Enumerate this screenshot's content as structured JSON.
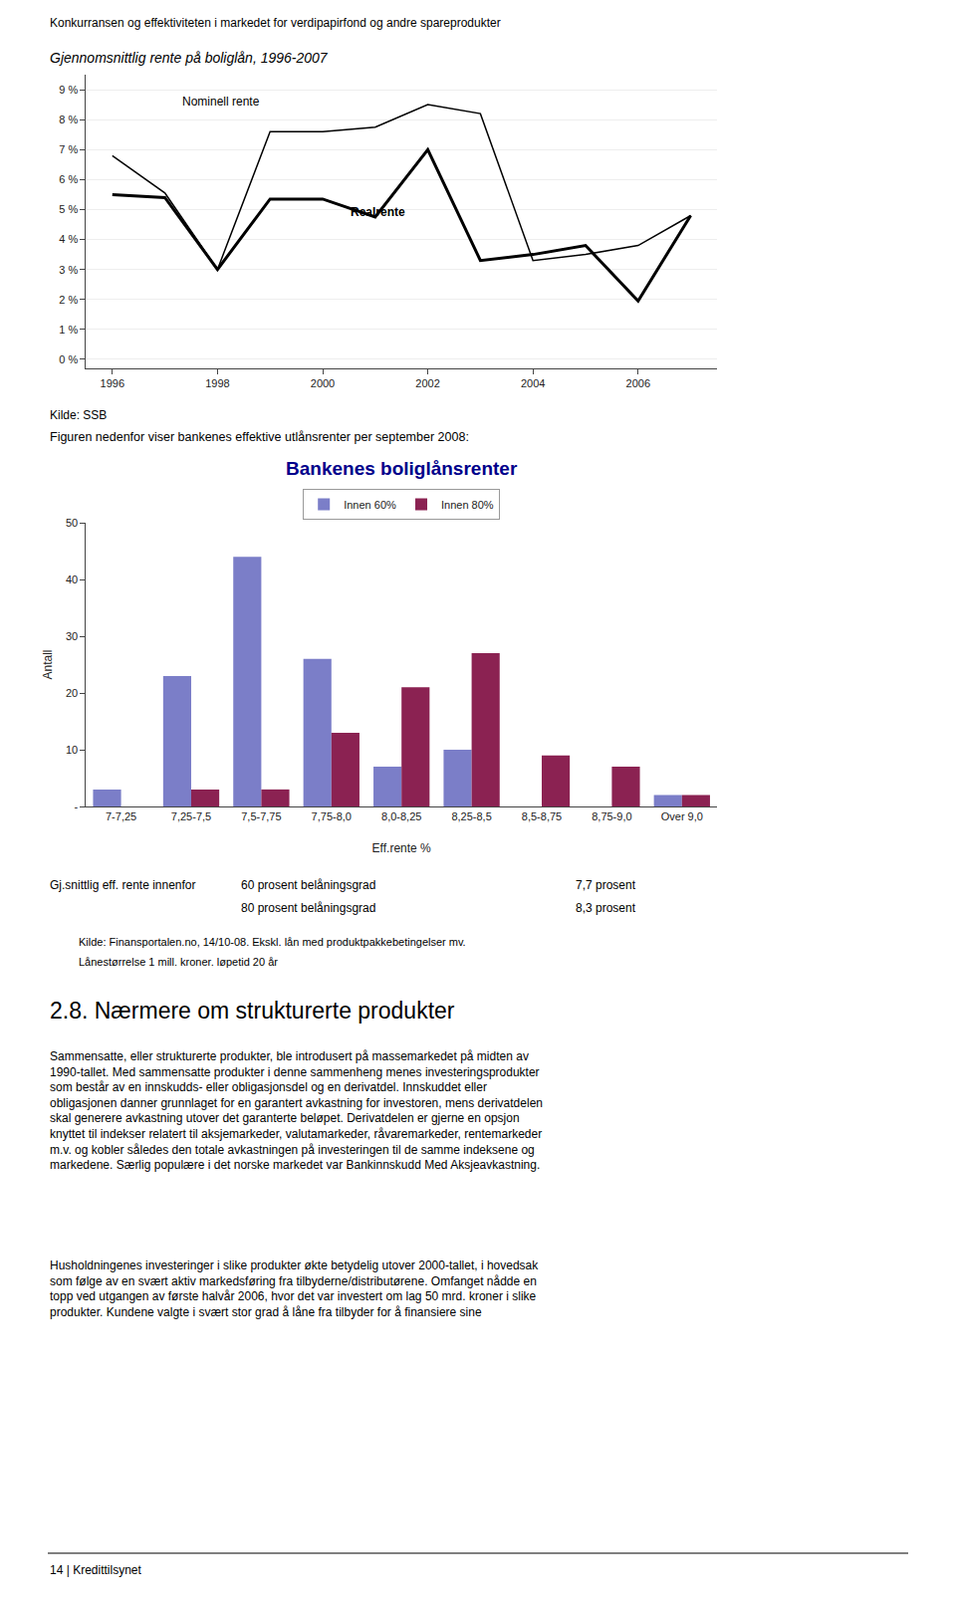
{
  "chart_data": [
    {
      "type": "line",
      "title": "Gjennomsnittlig rente på boliglån, 1996-2007",
      "series": [
        {
          "color": "black",
          "x": [
            1996,
            1997,
            1998,
            1999,
            2000,
            2001,
            2002,
            2003,
            2004,
            2005,
            2006,
            2007
          ],
          "values": [
            6.8,
            5.55,
            3.0,
            7.6,
            7.6,
            7.75,
            8.5,
            8.2,
            3.3,
            3.5,
            3.8,
            4.8
          ]
        },
        {
          "color": "black",
          "x": [
            1996,
            1997,
            1998,
            1999,
            2000,
            2001,
            2002,
            2003,
            2004,
            2005,
            2006,
            2007
          ],
          "values": [
            5.5,
            5.4,
            3.0,
            5.35,
            5.35,
            4.75,
            7.0,
            3.3,
            3.5,
            3.8,
            1.95,
            4.8
          ]
        }
      ],
      "xlim": [
        1995.5,
        2007.5
      ],
      "xticks": [
        1996,
        1998,
        2000,
        2002,
        2004,
        2006
      ],
      "ylim": [
        -0.3,
        9.5
      ],
      "yticks": [
        {
          "value": 0,
          "label": "0 %"
        },
        {
          "value": 1,
          "label": "1 %"
        },
        {
          "value": 2,
          "label": "2 %"
        },
        {
          "value": 3,
          "label": "3 %"
        },
        {
          "value": 4,
          "label": "4 %"
        },
        {
          "value": 5,
          "label": "5 %"
        },
        {
          "value": 6,
          "label": "6 %"
        },
        {
          "value": 7,
          "label": "7 %"
        },
        {
          "value": 8,
          "label": "8 %"
        },
        {
          "value": 9,
          "label": "9 %"
        }
      ],
      "annotations": [
        {
          "text": "Nominell rente",
          "x": 1997.3,
          "y": 8.3
        },
        {
          "text": "Realrente",
          "x": 2000.5,
          "y": 4.6
        }
      ],
      "grid": "y"
    },
    {
      "type": "bar",
      "title": "Bankenes boliglånsrenter",
      "categories": [
        "7-7,25",
        "7,25-7,5",
        "7,5-7,75",
        "7,75-8,0",
        "8,0-8,25",
        "8,25-8,5",
        "8,5-8,75",
        "8,75-9,0",
        "Over 9,0"
      ],
      "series": [
        {
          "name": "Innen 60%",
          "color": "#7B7EC8",
          "values": [
            3,
            23,
            44,
            26,
            7,
            10,
            0,
            0,
            2
          ]
        },
        {
          "name": "Innen 80%",
          "color": "#8B2252",
          "values": [
            0,
            3,
            3,
            13,
            21,
            27,
            9,
            7,
            2
          ]
        }
      ],
      "x_label": "Eff.rente %",
      "y_label": "Antall",
      "ylim": [
        0,
        50
      ],
      "yticks": [
        {
          "value": 0,
          "label": "-"
        },
        10,
        20,
        30,
        40,
        50
      ],
      "legend": "top",
      "grid": false
    }
  ],
  "texts": [
    "Konkurransen og effektiviteten i markedet for verdipapirfond og andre spareprodukter",
    "Kilde: SSB",
    "Figuren nedenfor viser bankenes effektive utlånsrenter per september 2008:",
    "Gj.snittlig eff. rente innenfor",
    "60 prosent belåningsgrad",
    "7,7 prosent",
    "80 prosent belåningsgrad",
    "8,3 prosent",
    "Kilde: Finansportalen.no, 14/10-08. Ekskl. lån med produktpakkebetingelser mv.",
    "Lånestørrelse 1 mill. kroner. løpetid 20 år",
    "2.8. Nærmere om strukturerte produkter",
    "Sammensatte, eller strukturerte produkter, ble introdusert på massemarkedet på midten av\n1990-tallet. Med sammensatte produkter i denne sammenheng menes investeringsprodukter\nsom består av en innskudds- eller obligasjonsdel og en derivatdel. Innskuddet eller\nobligasjonen danner grunnlaget for en garantert avkastning for investoren, mens derivatdelen\nskal generere avkastning utover det garanterte beløpet. Derivatdelen er gjerne en opsjon\nknyttet til indekser relatert til aksjemarkeder, valutamarkeder, råvaremarkeder, rentemarkeder\nm.v. og kobler således den totale avkastningen på investeringen til de samme indeksene og\nmarkedene. Særlig populære i det norske markedet var Bankinnskudd Med Aksjeavkastning.",
    "Husholdningenes investeringer i slike produkter økte betydelig utover 2000-tallet, i hovedsak\nsom følge av en svært aktiv markedsføring fra tilbyderne/distributørene. Omfanget nådde en\ntopp ved utgangen av første halvår 2006, hvor det var investert om lag 50 mrd. kroner i slike\nprodukter. Kundene valgte i svært stor grad å låne fra tilbyder for å finansiere sine",
    "14 | Kredittilsynet"
  ]
}
